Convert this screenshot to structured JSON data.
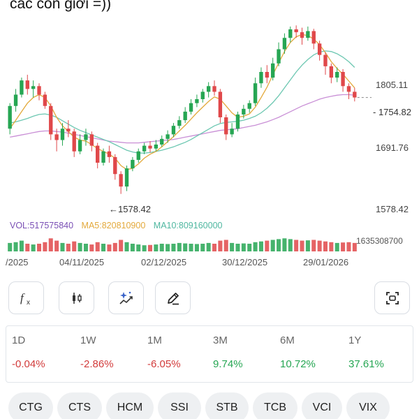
{
  "caption": "các con giời =))",
  "chart": {
    "price_labels": [
      "1805.11",
      "1691.76",
      "1578.42"
    ],
    "last_price": "1754.82",
    "min_marker": "1578.42",
    "volume_legend": {
      "vol": "VOL:517575840",
      "ma5": "MA5:820810900",
      "ma10": "MA10:809160000"
    },
    "volume_max": "1635308700",
    "dates": [
      "/2025",
      "04/11/2025",
      "02/12/2025",
      "30/12/2025",
      "29/01/2026"
    ],
    "colors": {
      "up": "#26a653",
      "down": "#e0484a",
      "ma_short": "#e3a93b",
      "ma_mid": "#6cc7b1",
      "ma_long": "#c98fd6"
    }
  },
  "chart_data": {
    "type": "candlestick",
    "ylim": [
      1560,
      1880
    ],
    "candles": [
      [
        1700,
        1740,
        1690,
        1745
      ],
      [
        1740,
        1760,
        1730,
        1770
      ],
      [
        1760,
        1785,
        1755,
        1790
      ],
      [
        1785,
        1770,
        1760,
        1795
      ],
      [
        1770,
        1775,
        1755,
        1785
      ],
      [
        1775,
        1760,
        1750,
        1780
      ],
      [
        1760,
        1740,
        1735,
        1765
      ],
      [
        1740,
        1690,
        1680,
        1745
      ],
      [
        1690,
        1680,
        1660,
        1700
      ],
      [
        1680,
        1700,
        1670,
        1710
      ],
      [
        1700,
        1695,
        1685,
        1715
      ],
      [
        1695,
        1660,
        1650,
        1700
      ],
      [
        1660,
        1680,
        1655,
        1690
      ],
      [
        1680,
        1690,
        1670,
        1700
      ],
      [
        1690,
        1670,
        1660,
        1695
      ],
      [
        1670,
        1640,
        1630,
        1675
      ],
      [
        1640,
        1660,
        1635,
        1665
      ],
      [
        1660,
        1650,
        1640,
        1670
      ],
      [
        1650,
        1620,
        1610,
        1655
      ],
      [
        1620,
        1598,
        1585,
        1625
      ],
      [
        1598,
        1630,
        1590,
        1635
      ],
      [
        1630,
        1645,
        1625,
        1650
      ],
      [
        1645,
        1660,
        1640,
        1665
      ],
      [
        1660,
        1670,
        1655,
        1675
      ],
      [
        1670,
        1665,
        1658,
        1678
      ],
      [
        1665,
        1672,
        1660,
        1680
      ],
      [
        1672,
        1682,
        1668,
        1688
      ],
      [
        1682,
        1690,
        1675,
        1697
      ],
      [
        1690,
        1705,
        1685,
        1710
      ],
      [
        1705,
        1715,
        1700,
        1722
      ],
      [
        1715,
        1730,
        1710,
        1738
      ],
      [
        1730,
        1745,
        1725,
        1752
      ],
      [
        1745,
        1752,
        1738,
        1760
      ],
      [
        1752,
        1765,
        1746,
        1770
      ],
      [
        1765,
        1775,
        1755,
        1782
      ],
      [
        1775,
        1765,
        1758,
        1785
      ],
      [
        1765,
        1720,
        1710,
        1770
      ],
      [
        1720,
        1690,
        1680,
        1725
      ],
      [
        1690,
        1700,
        1685,
        1710
      ],
      [
        1700,
        1725,
        1695,
        1730
      ],
      [
        1725,
        1735,
        1718,
        1742
      ],
      [
        1735,
        1745,
        1728,
        1750
      ],
      [
        1745,
        1780,
        1740,
        1790
      ],
      [
        1780,
        1800,
        1772,
        1808
      ],
      [
        1800,
        1790,
        1780,
        1812
      ],
      [
        1790,
        1815,
        1785,
        1825
      ],
      [
        1815,
        1840,
        1810,
        1852
      ],
      [
        1840,
        1860,
        1832,
        1868
      ],
      [
        1860,
        1875,
        1852,
        1880
      ],
      [
        1875,
        1870,
        1860,
        1882
      ],
      [
        1870,
        1860,
        1848,
        1878
      ],
      [
        1860,
        1872,
        1855,
        1880
      ],
      [
        1872,
        1850,
        1840,
        1876
      ],
      [
        1850,
        1830,
        1820,
        1855
      ],
      [
        1830,
        1810,
        1795,
        1835
      ],
      [
        1810,
        1790,
        1780,
        1815
      ],
      [
        1790,
        1800,
        1782,
        1808
      ],
      [
        1800,
        1775,
        1765,
        1805
      ],
      [
        1775,
        1765,
        1752,
        1780
      ],
      [
        1765,
        1755,
        1748,
        1772
      ]
    ],
    "ma_short": [
      1700,
      1715,
      1730,
      1745,
      1755,
      1760,
      1755,
      1740,
      1720,
      1705,
      1695,
      1685,
      1680,
      1678,
      1672,
      1665,
      1660,
      1655,
      1648,
      1635,
      1628,
      1630,
      1638,
      1648,
      1655,
      1660,
      1668,
      1677,
      1686,
      1696,
      1706,
      1717,
      1728,
      1738,
      1748,
      1756,
      1752,
      1740,
      1728,
      1720,
      1722,
      1726,
      1738,
      1755,
      1773,
      1795,
      1816,
      1836,
      1852,
      1862,
      1866,
      1864,
      1858,
      1848,
      1834,
      1818,
      1806,
      1796,
      1784,
      1772
    ],
    "ma_mid": [
      1710,
      1712,
      1715,
      1718,
      1722,
      1725,
      1726,
      1724,
      1720,
      1714,
      1708,
      1702,
      1697,
      1693,
      1689,
      1685,
      1681,
      1677,
      1672,
      1667,
      1662,
      1659,
      1657,
      1657,
      1658,
      1660,
      1662,
      1665,
      1668,
      1672,
      1676,
      1681,
      1687,
      1693,
      1699,
      1705,
      1709,
      1711,
      1712,
      1713,
      1715,
      1718,
      1722,
      1728,
      1736,
      1746,
      1758,
      1772,
      1786,
      1800,
      1812,
      1822,
      1830,
      1835,
      1837,
      1836,
      1832,
      1826,
      1818,
      1808
    ],
    "ma_long": [
      1685,
      1687,
      1689,
      1691,
      1693,
      1695,
      1696,
      1696,
      1695,
      1694,
      1692,
      1690,
      1688,
      1686,
      1684,
      1682,
      1680,
      1678,
      1677,
      1676,
      1675,
      1675,
      1675,
      1676,
      1677,
      1678,
      1679,
      1680,
      1681,
      1683,
      1685,
      1687,
      1689,
      1691,
      1693,
      1695,
      1697,
      1698,
      1699,
      1700,
      1702,
      1704,
      1706,
      1709,
      1712,
      1716,
      1720,
      1725,
      1730,
      1735,
      1740,
      1744,
      1748,
      1752,
      1755,
      1757,
      1759,
      1760,
      1760,
      1759
    ],
    "volume_relative": [
      0.55,
      0.6,
      0.7,
      0.5,
      0.45,
      0.5,
      0.6,
      0.85,
      0.7,
      0.55,
      0.5,
      0.65,
      0.55,
      0.5,
      0.45,
      0.6,
      0.5,
      0.45,
      0.55,
      0.75,
      0.6,
      0.5,
      0.45,
      0.4,
      0.42,
      0.45,
      0.5,
      0.48,
      0.5,
      0.55,
      0.52,
      0.5,
      0.48,
      0.5,
      0.55,
      0.5,
      0.7,
      0.75,
      0.55,
      0.5,
      0.52,
      0.5,
      0.6,
      0.65,
      0.7,
      0.75,
      0.8,
      0.85,
      0.8,
      0.75,
      0.7,
      0.72,
      0.75,
      0.7,
      0.65,
      0.6,
      0.55,
      0.58,
      0.6,
      0.55
    ]
  },
  "toolbar": {
    "buttons": [
      {
        "name": "function-button",
        "icon": "fx-icon"
      },
      {
        "name": "candle-type-button",
        "icon": "candlestick-icon"
      },
      {
        "name": "ai-indicator-button",
        "icon": "sparkle-chart-icon"
      },
      {
        "name": "draw-button",
        "icon": "pencil-icon"
      },
      {
        "name": "fullscreen-button",
        "icon": "scan-icon"
      }
    ]
  },
  "performance": [
    {
      "period": "1D",
      "value": "-0.04%",
      "trend": "neg"
    },
    {
      "period": "1W",
      "value": "-2.86%",
      "trend": "neg"
    },
    {
      "period": "1M",
      "value": "-6.05%",
      "trend": "neg"
    },
    {
      "period": "3M",
      "value": "9.74%",
      "trend": "pos"
    },
    {
      "period": "6M",
      "value": "10.72%",
      "trend": "pos"
    },
    {
      "period": "1Y",
      "value": "37.61%",
      "trend": "pos"
    }
  ],
  "tickers": [
    "CTG",
    "CTS",
    "HCM",
    "SSI",
    "STB",
    "TCB",
    "VCI",
    "VIX"
  ]
}
